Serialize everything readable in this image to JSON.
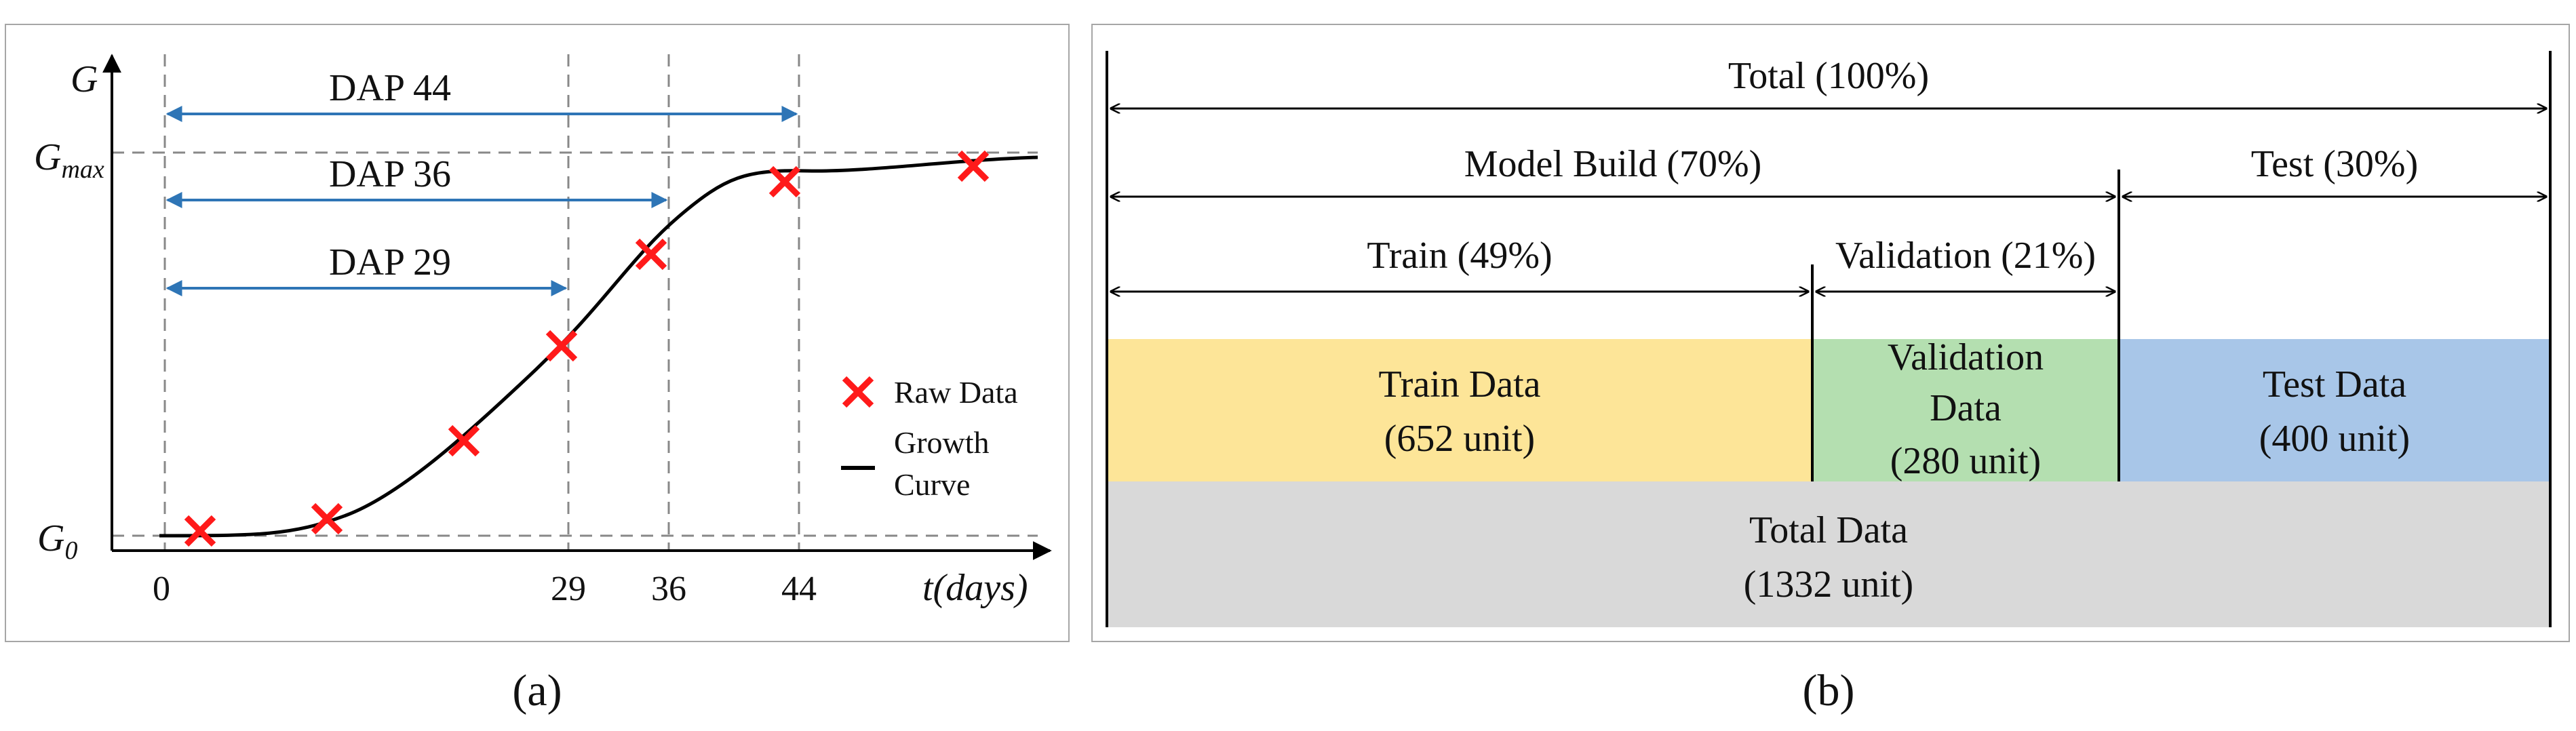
{
  "panel_a": {
    "caption": "(a)",
    "y_axis_label": "G",
    "y_max_label_base": "G",
    "y_max_label_sub": "max",
    "y_min_label_base": "G",
    "y_min_label_sub": "0",
    "x_axis_label": "t(days)",
    "x_ticks": [
      "0",
      "29",
      "36",
      "44"
    ],
    "spans": [
      {
        "label": "DAP 44",
        "end_day": 44
      },
      {
        "label": "DAP 36",
        "end_day": 36
      },
      {
        "label": "DAP 29",
        "end_day": 29
      }
    ],
    "legend": {
      "raw_label": "Raw Data",
      "curve_label_line1": "Growth",
      "curve_label_line2": "Curve"
    },
    "colors": {
      "marker": "#ff1a1a",
      "span_arrow": "#2e75b6",
      "curve": "#000000",
      "guide": "#888888"
    }
  },
  "panel_b": {
    "caption": "(b)",
    "total_label": "Total (100%)",
    "model_build_label": "Model Build (70%)",
    "test_label": "Test (30%)",
    "train_label": "Train (49%)",
    "validation_label": "Validation (21%)",
    "boxes": {
      "train": {
        "line1": "Train Data",
        "line2": "(652 unit)",
        "color": "#fde598"
      },
      "validation": {
        "line1": "Validation",
        "line2": "Data",
        "line3": "(280 unit)",
        "color": "#b4dfb0"
      },
      "test": {
        "line1": "Test Data",
        "line2": "(400 unit)",
        "color": "#a8c6e8"
      },
      "total": {
        "line1": "Total Data",
        "line2": "(1332 unit)",
        "color": "#d9d9d9"
      }
    }
  }
}
